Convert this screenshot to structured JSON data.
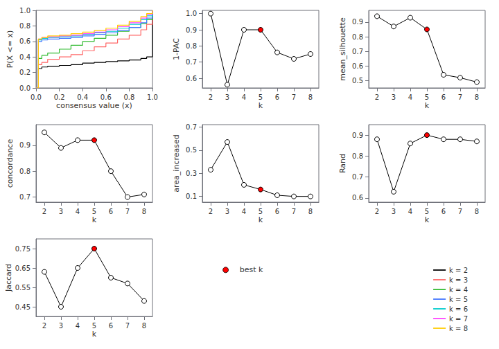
{
  "chart_data": [
    {
      "type": "step",
      "xlabel": "consensus value (x)",
      "ylabel": "P(X <= x)",
      "xlim": [
        0,
        1
      ],
      "ylim": [
        0,
        1
      ],
      "xticks": [
        {
          "value": 0,
          "label": "0.0"
        },
        0.2,
        0.4,
        0.6,
        0.8,
        {
          "value": 1,
          "label": "1.0"
        }
      ],
      "yticks": [
        {
          "value": 0,
          "label": "0.0"
        },
        0.2,
        0.4,
        0.6,
        0.8,
        {
          "value": 1,
          "label": "1.0"
        }
      ],
      "grid": false,
      "legend": "lower right",
      "series": [
        {
          "name": "k = 2",
          "color": "black",
          "x": [
            0.0,
            0.02,
            0.05,
            0.1,
            0.2,
            0.3,
            0.4,
            0.5,
            0.6,
            0.7,
            0.8,
            0.9,
            0.95,
            1.0
          ],
          "values": [
            0.0,
            0.25,
            0.27,
            0.28,
            0.29,
            0.3,
            0.32,
            0.33,
            0.34,
            0.35,
            0.36,
            0.38,
            0.4,
            1.0
          ]
        },
        {
          "name": "k = 3",
          "color": "#FF6666",
          "x": [
            0.0,
            0.02,
            0.05,
            0.1,
            0.2,
            0.3,
            0.4,
            0.5,
            0.6,
            0.7,
            0.8,
            0.9,
            0.95,
            1.0
          ],
          "values": [
            0.0,
            0.3,
            0.33,
            0.37,
            0.4,
            0.43,
            0.48,
            0.53,
            0.58,
            0.63,
            0.68,
            0.75,
            0.82,
            1.0
          ]
        },
        {
          "name": "k = 4",
          "color": "#33BB33",
          "x": [
            0.0,
            0.02,
            0.05,
            0.1,
            0.2,
            0.3,
            0.4,
            0.5,
            0.6,
            0.7,
            0.8,
            0.9,
            0.95,
            1.0
          ],
          "values": [
            0.0,
            0.38,
            0.42,
            0.45,
            0.5,
            0.55,
            0.6,
            0.64,
            0.68,
            0.73,
            0.78,
            0.83,
            0.88,
            1.0
          ]
        },
        {
          "name": "k = 5",
          "color": "#4477FF",
          "x": [
            0.0,
            0.02,
            0.05,
            0.1,
            0.2,
            0.3,
            0.4,
            0.5,
            0.6,
            0.7,
            0.8,
            0.9,
            0.95,
            1.0
          ],
          "values": [
            0.0,
            0.6,
            0.62,
            0.63,
            0.64,
            0.65,
            0.67,
            0.69,
            0.71,
            0.74,
            0.78,
            0.84,
            0.9,
            1.0
          ]
        },
        {
          "name": "k = 6",
          "color": "#00CCCC",
          "x": [
            0.0,
            0.02,
            0.05,
            0.1,
            0.2,
            0.3,
            0.4,
            0.5,
            0.6,
            0.7,
            0.8,
            0.9,
            0.95,
            1.0
          ],
          "values": [
            0.0,
            0.62,
            0.64,
            0.65,
            0.66,
            0.67,
            0.69,
            0.71,
            0.73,
            0.77,
            0.82,
            0.88,
            0.93,
            1.0
          ]
        },
        {
          "name": "k = 7",
          "color": "#FF44FF",
          "x": [
            0.0,
            0.02,
            0.05,
            0.1,
            0.2,
            0.3,
            0.4,
            0.5,
            0.6,
            0.7,
            0.8,
            0.9,
            0.95,
            1.0
          ],
          "values": [
            0.0,
            0.63,
            0.65,
            0.66,
            0.67,
            0.68,
            0.7,
            0.72,
            0.75,
            0.79,
            0.84,
            0.9,
            0.95,
            1.0
          ]
        },
        {
          "name": "k = 8",
          "color": "#FFCC00",
          "x": [
            0.0,
            0.02,
            0.05,
            0.1,
            0.2,
            0.3,
            0.4,
            0.5,
            0.6,
            0.7,
            0.8,
            0.9,
            0.95,
            1.0
          ],
          "values": [
            0.0,
            0.63,
            0.65,
            0.67,
            0.68,
            0.7,
            0.72,
            0.74,
            0.77,
            0.81,
            0.86,
            0.92,
            0.96,
            1.0
          ]
        }
      ]
    },
    {
      "type": "line",
      "xlabel": "k",
      "ylabel": "1-PAC",
      "x": [
        2,
        3,
        4,
        5,
        6,
        7,
        8
      ],
      "values": [
        1.0,
        0.56,
        0.9,
        0.9,
        0.76,
        0.72,
        0.75
      ],
      "color": "black",
      "colors": [
        "white",
        "white",
        "white",
        "red",
        "white",
        "white",
        "white"
      ],
      "marker": "circle",
      "xlim": [
        1.5,
        8.5
      ],
      "xticks": [
        2,
        3,
        4,
        5,
        6,
        7,
        8
      ],
      "ylim": [
        0.54,
        1.02
      ],
      "yticks": [
        0.6,
        0.7,
        0.8,
        0.9,
        {
          "value": 1.0,
          "label": "1.0"
        }
      ],
      "grid": false
    },
    {
      "type": "line",
      "xlabel": "k",
      "ylabel": "mean_silhouette",
      "x": [
        2,
        3,
        4,
        5,
        6,
        7,
        8
      ],
      "values": [
        0.94,
        0.87,
        0.93,
        0.85,
        0.54,
        0.52,
        0.49
      ],
      "color": "black",
      "colors": [
        "white",
        "white",
        "white",
        "red",
        "white",
        "white",
        "white"
      ],
      "marker": "circle",
      "xlim": [
        1.5,
        8.5
      ],
      "xticks": [
        2,
        3,
        4,
        5,
        6,
        7,
        8
      ],
      "ylim": [
        0.45,
        0.98
      ],
      "yticks": [
        0.5,
        0.6,
        0.7,
        0.8,
        0.9
      ],
      "grid": false
    },
    {
      "type": "line",
      "xlabel": "k",
      "ylabel": "concordance",
      "x": [
        2,
        3,
        4,
        5,
        6,
        7,
        8
      ],
      "values": [
        0.95,
        0.89,
        0.92,
        0.92,
        0.8,
        0.7,
        0.71
      ],
      "color": "black",
      "colors": [
        "white",
        "white",
        "white",
        "red",
        "white",
        "white",
        "white"
      ],
      "marker": "circle",
      "xlim": [
        1.5,
        8.5
      ],
      "xticks": [
        2,
        3,
        4,
        5,
        6,
        7,
        8
      ],
      "ylim": [
        0.68,
        0.98
      ],
      "yticks": [
        0.7,
        0.8,
        0.9
      ],
      "grid": false
    },
    {
      "type": "line",
      "xlabel": "k",
      "ylabel": "area_increased",
      "x": [
        2,
        3,
        4,
        5,
        6,
        7,
        8
      ],
      "values": [
        0.33,
        0.57,
        0.2,
        0.16,
        0.11,
        0.1,
        0.1
      ],
      "color": "black",
      "colors": [
        "white",
        "white",
        "white",
        "red",
        "white",
        "white",
        "white"
      ],
      "marker": "circle",
      "xlim": [
        1.5,
        8.5
      ],
      "xticks": [
        2,
        3,
        4,
        5,
        6,
        7,
        8
      ],
      "ylim": [
        0.05,
        0.72
      ],
      "yticks": [
        0.1,
        0.3,
        0.5,
        0.7
      ],
      "grid": false
    },
    {
      "type": "line",
      "xlabel": "k",
      "ylabel": "Rand",
      "x": [
        2,
        3,
        4,
        5,
        6,
        7,
        8
      ],
      "values": [
        0.88,
        0.63,
        0.86,
        0.9,
        0.88,
        0.88,
        0.87
      ],
      "color": "black",
      "colors": [
        "white",
        "white",
        "white",
        "red",
        "white",
        "white",
        "white"
      ],
      "marker": "circle",
      "xlim": [
        1.5,
        8.5
      ],
      "xticks": [
        2,
        3,
        4,
        5,
        6,
        7,
        8
      ],
      "ylim": [
        0.58,
        0.95
      ],
      "yticks": [
        0.6,
        0.7,
        0.8,
        0.9
      ],
      "grid": false
    },
    {
      "type": "line",
      "xlabel": "k",
      "ylabel": "Jaccard",
      "x": [
        2,
        3,
        4,
        5,
        6,
        7,
        8
      ],
      "values": [
        0.63,
        0.45,
        0.65,
        0.75,
        0.6,
        0.57,
        0.48
      ],
      "color": "black",
      "colors": [
        "white",
        "white",
        "white",
        "red",
        "white",
        "white",
        "white"
      ],
      "marker": "circle",
      "xlim": [
        1.5,
        8.5
      ],
      "xticks": [
        2,
        3,
        4,
        5,
        6,
        7,
        8
      ],
      "ylim": [
        0.4,
        0.8
      ],
      "yticks": [
        0.45,
        0.55,
        0.65,
        0.75
      ],
      "grid": false
    },
    {
      "type": "key",
      "series": [
        {
          "name": "best k",
          "color": "red",
          "marker": "circle"
        }
      ]
    }
  ]
}
